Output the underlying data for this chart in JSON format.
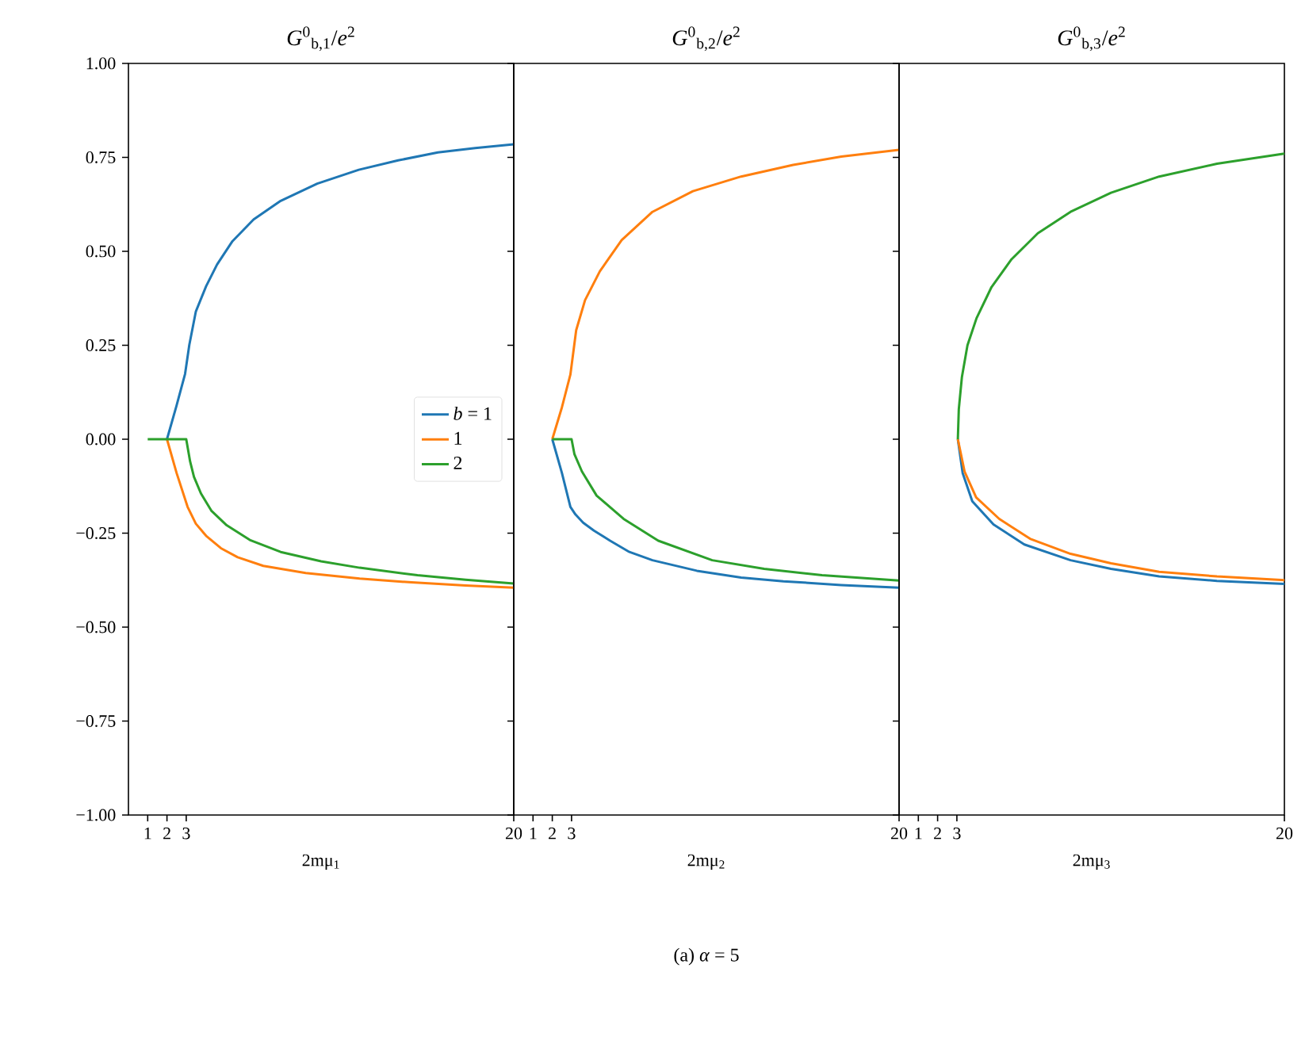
{
  "chart_data": [
    {
      "type": "line",
      "title": "*G*$^{0}$$_{b,1}$/*e*$^{2}$",
      "xlabel": "2mμ$_{1}$",
      "xlim": [
        0,
        20
      ],
      "xticks": [
        1,
        2,
        3,
        20
      ],
      "ylim": [
        -1,
        1
      ],
      "yticks": [
        {
          "value": -1,
          "label": "−1.00"
        },
        {
          "value": -0.75,
          "label": "−0.75"
        },
        {
          "value": -0.5,
          "label": "−0.50"
        },
        {
          "value": -0.25,
          "label": "−0.25"
        },
        {
          "value": 0,
          "label": "0.00"
        },
        {
          "value": 0.25,
          "label": "0.25"
        },
        {
          "value": 0.5,
          "label": "0.50"
        },
        {
          "value": 0.75,
          "label": "0.75"
        },
        {
          "value": 1,
          "label": "1.00"
        }
      ],
      "legend": "center right",
      "line_style": "solid",
      "grid": false,
      "series": [
        {
          "name": "*b* = 1",
          "color": "#1f77b4",
          "x": [
            2,
            2.5,
            2.94,
            3.16,
            3.5,
            4.03,
            4.6,
            5.4,
            6.5,
            7.86,
            9.8,
            11.96,
            14,
            16.06,
            18,
            20
          ],
          "values": [
            0,
            0.09,
            0.174,
            0.251,
            0.34,
            0.407,
            0.465,
            0.527,
            0.585,
            0.633,
            0.68,
            0.717,
            0.742,
            0.763,
            0.775,
            0.785
          ]
        },
        {
          "name": "1",
          "color": "#ff7f0e",
          "x": [
            2,
            2.5,
            3.07,
            3.5,
            4.03,
            4.8,
            5.67,
            7,
            9.2,
            12,
            14.7,
            17.5,
            20
          ],
          "values": [
            0,
            -0.09,
            -0.18,
            -0.225,
            -0.257,
            -0.29,
            -0.314,
            -0.337,
            -0.356,
            -0.371,
            -0.381,
            -0.389,
            -0.395
          ]
        },
        {
          "name": "2",
          "color": "#2ca02c",
          "x": [
            1,
            3,
            3.2,
            3.4,
            3.76,
            4.3,
            5.1,
            6.3,
            7.9,
            10,
            12,
            15,
            17.5,
            20
          ],
          "values": [
            0,
            0,
            -0.059,
            -0.1,
            -0.144,
            -0.19,
            -0.229,
            -0.268,
            -0.3,
            -0.325,
            -0.342,
            -0.362,
            -0.374,
            -0.384
          ]
        }
      ]
    },
    {
      "type": "line",
      "title": "*G*$^{0}$$_{b,2}$/*e*$^{2}$",
      "xlabel": "2mμ$_{2}$",
      "xlim": [
        0,
        20
      ],
      "xticks": [
        1,
        2,
        3,
        20
      ],
      "ylim": [
        -1,
        1
      ],
      "yticks": [
        -1,
        -0.75,
        -0.5,
        -0.25,
        0,
        0.25,
        0.5,
        0.75,
        1
      ],
      "tick_labels": "x",
      "line_style": "solid",
      "grid": false,
      "annotations": [
        "(a) *α* = 5"
      ],
      "series": [
        {
          "color": "#1f77b4",
          "x": [
            2,
            2.5,
            2.94,
            3.2,
            3.6,
            4.16,
            5,
            6,
            7.2,
            9.5,
            11.8,
            14,
            17,
            20
          ],
          "values": [
            0,
            -0.09,
            -0.18,
            -0.2,
            -0.222,
            -0.243,
            -0.27,
            -0.3,
            -0.322,
            -0.35,
            -0.368,
            -0.378,
            -0.388,
            -0.395
          ]
        },
        {
          "color": "#ff7f0e",
          "x": [
            2,
            2.5,
            2.94,
            3.24,
            3.7,
            4.47,
            5.6,
            7.2,
            9.3,
            11.8,
            14.5,
            17,
            20
          ],
          "values": [
            0,
            0.085,
            0.172,
            0.29,
            0.37,
            0.447,
            0.53,
            0.605,
            0.66,
            0.699,
            0.73,
            0.752,
            0.77
          ]
        },
        {
          "color": "#2ca02c",
          "x": [
            2,
            3,
            3.15,
            3.54,
            4.3,
            5.7,
            7.5,
            10.3,
            13,
            16,
            20
          ],
          "values": [
            0,
            0,
            -0.04,
            -0.086,
            -0.15,
            -0.212,
            -0.27,
            -0.322,
            -0.345,
            -0.362,
            -0.376
          ]
        }
      ]
    },
    {
      "type": "line",
      "title": "*G*$^{0}$$_{b,3}$/*e*$^{2}$",
      "xlabel": "2mμ$_{3}$",
      "xlim": [
        0,
        20
      ],
      "xticks": [
        1,
        2,
        3,
        20
      ],
      "ylim": [
        -1,
        1
      ],
      "yticks": [
        -1,
        -0.75,
        -0.5,
        -0.25,
        0,
        0.25,
        0.5,
        0.75,
        1
      ],
      "tick_labels": "x",
      "line_style": "solid",
      "grid": false,
      "series": [
        {
          "color": "#1f77b4",
          "x": [
            3.05,
            3.3,
            3.8,
            4.9,
            6.5,
            8.9,
            11,
            13.5,
            16.5,
            20
          ],
          "values": [
            0,
            -0.09,
            -0.165,
            -0.227,
            -0.28,
            -0.322,
            -0.345,
            -0.365,
            -0.377,
            -0.385
          ]
        },
        {
          "color": "#ff7f0e",
          "x": [
            3.05,
            3.4,
            4,
            5.2,
            6.8,
            8.9,
            11,
            13.5,
            16.5,
            20
          ],
          "values": [
            0,
            -0.086,
            -0.155,
            -0.212,
            -0.265,
            -0.305,
            -0.33,
            -0.353,
            -0.365,
            -0.375
          ]
        },
        {
          "color": "#2ca02c",
          "x": [
            3.05,
            3.1,
            3.26,
            3.55,
            4.02,
            4.8,
            5.84,
            7.2,
            8.9,
            11,
            13.5,
            16.5,
            20
          ],
          "values": [
            0,
            0.08,
            0.165,
            0.25,
            0.322,
            0.405,
            0.479,
            0.548,
            0.605,
            0.656,
            0.699,
            0.733,
            0.76
          ]
        }
      ]
    }
  ]
}
